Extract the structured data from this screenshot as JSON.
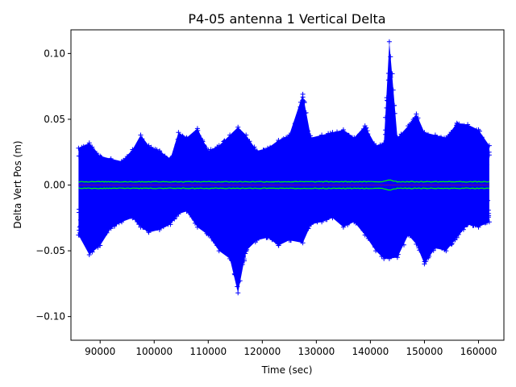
{
  "chart_data": {
    "type": "scatter",
    "title": "P4-05 antenna 1 Vertical Delta",
    "xlabel": "Time (sec)",
    "ylabel": "Delta Vert Pos (m)",
    "xlim": [
      84600,
      164700
    ],
    "ylim": [
      -0.118,
      0.118
    ],
    "x_ticks": [
      90000,
      100000,
      110000,
      120000,
      130000,
      140000,
      150000,
      160000
    ],
    "y_ticks": [
      -0.1,
      -0.05,
      0.0,
      0.05,
      0.1
    ],
    "x_tick_labels": [
      "90000",
      "100000",
      "110000",
      "120000",
      "130000",
      "140000",
      "150000",
      "160000"
    ],
    "y_tick_labels": [
      "−0.10",
      "−0.05",
      "0.00",
      "0.05",
      "0.10"
    ],
    "grid": false,
    "x_range": [
      86000,
      162000
    ],
    "envelope": {
      "x": [
        86000,
        88000,
        90000,
        92000,
        94000,
        96000,
        97500,
        99000,
        101000,
        103000,
        104500,
        106000,
        108000,
        110000,
        112000,
        114000,
        115500,
        117000,
        119000,
        121000,
        123000,
        125000,
        127500,
        129000,
        131000,
        133000,
        135000,
        137000,
        139000,
        141000,
        142500,
        143500,
        145000,
        147000,
        148500,
        150000,
        152000,
        154000,
        156000,
        158000,
        160000,
        162000
      ],
      "upper": [
        0.028,
        0.032,
        0.022,
        0.02,
        0.018,
        0.027,
        0.038,
        0.03,
        0.026,
        0.02,
        0.04,
        0.036,
        0.043,
        0.026,
        0.03,
        0.038,
        0.044,
        0.038,
        0.026,
        0.028,
        0.034,
        0.038,
        0.069,
        0.036,
        0.038,
        0.04,
        0.042,
        0.036,
        0.045,
        0.03,
        0.032,
        0.109,
        0.036,
        0.045,
        0.054,
        0.04,
        0.038,
        0.036,
        0.047,
        0.046,
        0.042,
        0.03
      ],
      "lower": [
        -0.038,
        -0.053,
        -0.046,
        -0.033,
        -0.028,
        -0.025,
        -0.032,
        -0.036,
        -0.034,
        -0.03,
        -0.022,
        -0.02,
        -0.032,
        -0.038,
        -0.05,
        -0.056,
        -0.082,
        -0.05,
        -0.042,
        -0.04,
        -0.046,
        -0.042,
        -0.044,
        -0.03,
        -0.028,
        -0.025,
        -0.032,
        -0.028,
        -0.038,
        -0.05,
        -0.056,
        -0.056,
        -0.055,
        -0.038,
        -0.045,
        -0.06,
        -0.048,
        -0.05,
        -0.04,
        -0.03,
        -0.032,
        -0.028
      ]
    },
    "mean_band": {
      "upper": 0.0025,
      "lower": -0.0025,
      "bump_x": 143500,
      "bump_amount": 0.0015
    },
    "series": [
      {
        "marker": "+",
        "color": "#0000ff"
      },
      {
        "color": "#00ff00"
      },
      {
        "color": "#800080"
      }
    ]
  }
}
